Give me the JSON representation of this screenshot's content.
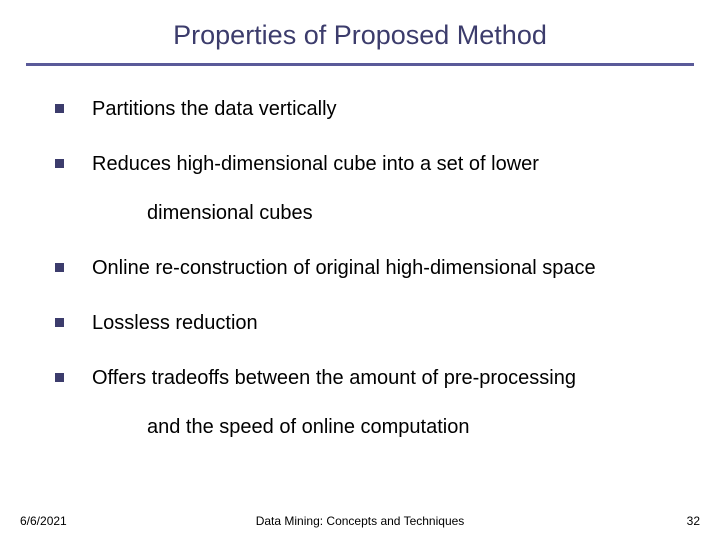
{
  "slide": {
    "title": "Properties of Proposed Method",
    "title_color": "#3c3c6c",
    "title_fontsize": 27,
    "divider_color": "#5a5a99",
    "background_color": "#ffffff",
    "bullets": [
      {
        "text": "Partitions the data vertically",
        "cont": ""
      },
      {
        "text": "Reduces high-dimensional cube into a set of lower",
        "cont": "dimensional cubes"
      },
      {
        "text": "Online re-construction of original high-dimensional space",
        "cont": ""
      },
      {
        "text": "Lossless reduction",
        "cont": ""
      },
      {
        "text": "Offers tradeoffs between the amount of pre-processing",
        "cont": "and the speed of online computation"
      }
    ],
    "bullet_marker_color": "#3c3c6c",
    "bullet_marker_size": 9,
    "body_fontsize": 20,
    "body_color": "#000000"
  },
  "footer": {
    "date": "6/6/2021",
    "center": "Data Mining: Concepts and Techniques",
    "page": "32",
    "fontsize": 12,
    "color": "#000000"
  }
}
